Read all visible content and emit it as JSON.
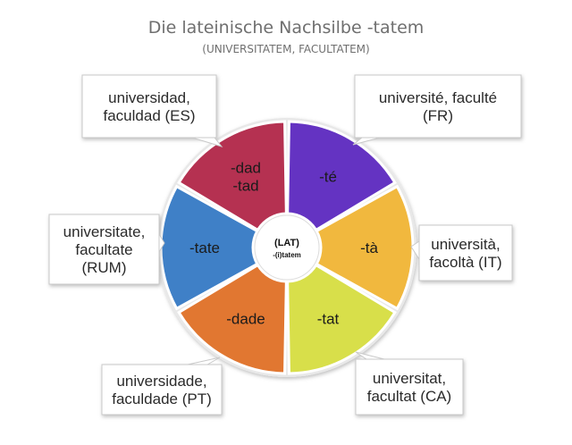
{
  "title": "Die lateinische Nachsilbe -tatem",
  "subtitle": "(UNIVERSITATEM, FACULTATEM)",
  "center": {
    "line1": "(LAT)",
    "line2": "-(i)tatem"
  },
  "segments": [
    {
      "id": "es",
      "lines": [
        "-dad",
        "-tad"
      ],
      "color": "#b53151"
    },
    {
      "id": "fr",
      "lines": [
        "-té"
      ],
      "color": "#6433c2"
    },
    {
      "id": "it",
      "lines": [
        "-tà"
      ],
      "color": "#f1b83e"
    },
    {
      "id": "ca",
      "lines": [
        "-tat"
      ],
      "color": "#d8df4a"
    },
    {
      "id": "pt",
      "lines": [
        "-dade"
      ],
      "color": "#e17731"
    },
    {
      "id": "rum",
      "lines": [
        "-tate"
      ],
      "color": "#3f80c7"
    }
  ],
  "callouts": [
    {
      "id": "es",
      "lines": [
        "universidad,",
        "faculdad (ES)"
      ]
    },
    {
      "id": "fr",
      "lines": [
        "université, faculté",
        "(FR)"
      ]
    },
    {
      "id": "it",
      "lines": [
        "università,",
        "facoltà (IT)"
      ]
    },
    {
      "id": "ca",
      "lines": [
        "universitat,",
        "facultat (CA)"
      ]
    },
    {
      "id": "pt",
      "lines": [
        "universidade,",
        "faculdade (PT)"
      ]
    },
    {
      "id": "rum",
      "lines": [
        "universitate,",
        "facultate",
        "(RUM)"
      ]
    }
  ]
}
